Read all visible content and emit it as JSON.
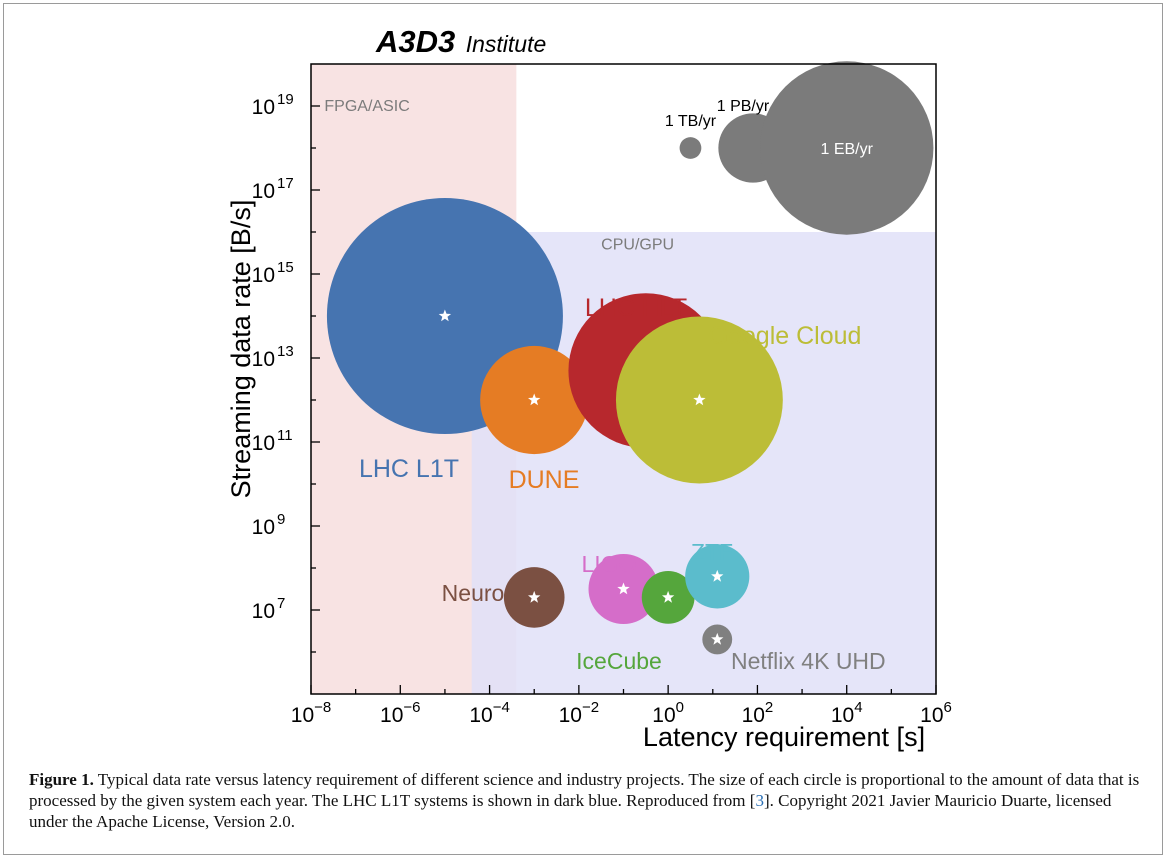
{
  "chart_data": {
    "type": "scatter",
    "subtype": "bubble",
    "brand": {
      "bold": "A3D3",
      "rest": "Institute"
    },
    "xlabel": "Latency requirement [s]",
    "ylabel": "Streaming data rate [B/s]",
    "x_scale": "log",
    "y_scale": "log",
    "xlim_exp": [
      -8,
      6
    ],
    "ylim_exp": [
      5,
      20
    ],
    "x_tick_exponents": [
      -8,
      -6,
      -4,
      -2,
      0,
      2,
      4,
      6
    ],
    "y_tick_exponents": [
      7,
      9,
      11,
      13,
      15,
      17,
      19
    ],
    "tick_base": "10",
    "grid": false,
    "regions": [
      {
        "name": "FPGA/ASIC",
        "x_exp": [
          -8,
          -3.4
        ],
        "y_exp": [
          5,
          20
        ],
        "color": "#f7dede"
      },
      {
        "name": "CPU/GPU",
        "x_exp": [
          -4.4,
          6
        ],
        "y_exp": [
          5,
          16
        ],
        "color": "#e0e1f8"
      }
    ],
    "bubbles": [
      {
        "name": "LHC L1T",
        "x_exp": -5,
        "y_exp": 14,
        "size": 1.0,
        "color": "#4674b0",
        "label_color": "#4674b0"
      },
      {
        "name": "DUNE",
        "x_exp": -3,
        "y_exp": 12,
        "size": 0.21,
        "color": "#e57c24",
        "label_color": "#e57c24"
      },
      {
        "name": "LHC HLT",
        "x_exp": -0.5,
        "y_exp": 12.7,
        "size": 0.43,
        "color": "#b7282d",
        "label_color": "#b7282d"
      },
      {
        "name": "Google Cloud",
        "x_exp": 0.7,
        "y_exp": 12,
        "size": 0.5,
        "color": "#bcbd37",
        "label_color": "#bcbd37"
      },
      {
        "name": "Neuro",
        "x_exp": -3,
        "y_exp": 7.3,
        "size": 0.066,
        "color": "#7b5042",
        "label_color": "#7b5042"
      },
      {
        "name": "LIGO",
        "x_exp": -1,
        "y_exp": 7.5,
        "size": 0.088,
        "color": "#d56dc9",
        "label_color": "#d56dc9"
      },
      {
        "name": "IceCube",
        "x_exp": 0,
        "y_exp": 7.3,
        "size": 0.05,
        "color": "#55a63c",
        "label_color": "#55a63c"
      },
      {
        "name": "ZTF",
        "x_exp": 1.1,
        "y_exp": 7.8,
        "size": 0.074,
        "color": "#5bbccc",
        "label_color": "#5bbccc"
      },
      {
        "name": "Netflix 4K UHD",
        "x_exp": 1.1,
        "y_exp": 6.3,
        "size": 0.016,
        "color": "#808080",
        "label_color": "#808080"
      }
    ],
    "size_legend": [
      {
        "label": "1 TB/yr",
        "x_exp": 0.5,
        "y_exp": 18,
        "size": 0.0085
      },
      {
        "label": "1 PB/yr",
        "x_exp": 1.9,
        "y_exp": 18,
        "size": 0.086
      },
      {
        "label": "1 EB/yr",
        "x_exp": 4,
        "y_exp": 18,
        "size": 0.54
      }
    ],
    "legend_color": "#7b7b7b"
  },
  "caption": {
    "figure_label": "Figure 1.",
    "text_before_ref": " Typical data rate versus latency requirement of different science and industry projects. The size of each circle is proportional to the amount of data that is processed by the given system each year. The LHC L1T systems is shown in dark blue. Reproduced from ",
    "ref_open": "[",
    "ref": "3",
    "ref_close": "]",
    "text_after_ref": ". Copyright 2021 Javier Mauricio Duarte, licensed under the Apache License, Version 2.0."
  }
}
